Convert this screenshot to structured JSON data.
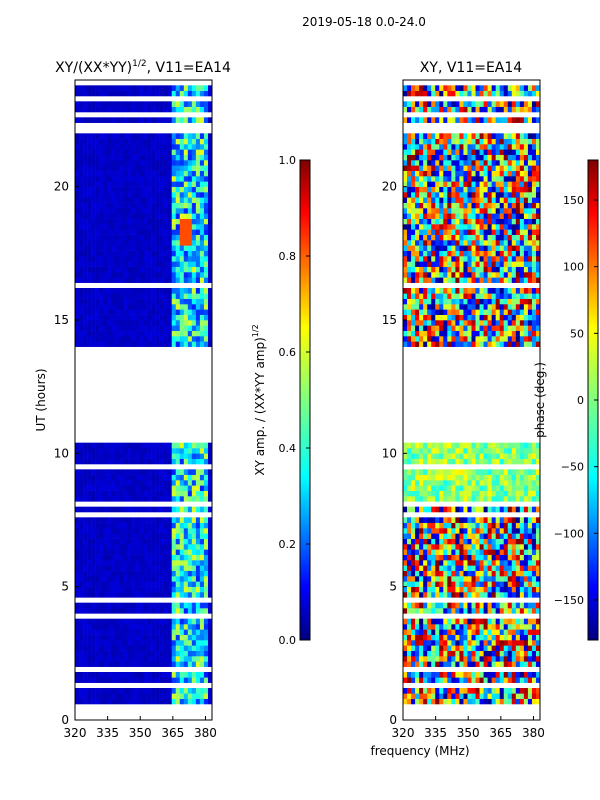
{
  "figure": {
    "suptitle": "2019-05-18 0.0-24.0",
    "shared_xlabel": "frequency (MHz)"
  },
  "colors": {
    "colormap": [
      "#00007f",
      "#0000ff",
      "#007fff",
      "#00ffff",
      "#7fff7f",
      "#ffff00",
      "#ff7f00",
      "#ff0000",
      "#7f0000"
    ],
    "axes": "#000000",
    "background": "#ffffff"
  },
  "chart_data": [
    {
      "type": "heatmap",
      "title": "XY/(XX*YY)",
      "title_superscript": "1/2",
      "title_suffix": ", V11=EA14",
      "xlabel": "",
      "ylabel": "UT (hours)",
      "xlim": [
        320,
        383
      ],
      "ylim": [
        0,
        24
      ],
      "xticks": [
        "320",
        "335",
        "350",
        "365",
        "380"
      ],
      "xtick_values": [
        320,
        335,
        350,
        365,
        380
      ],
      "yticks": [
        "0",
        "5",
        "10",
        "15",
        "20"
      ],
      "ytick_values": [
        0,
        5,
        10,
        15,
        20
      ],
      "colorbar": {
        "label": "XY amp. / (XX*YY amp)",
        "label_superscript": "1/2",
        "range": [
          0.0,
          1.0
        ],
        "ticks": [
          "0.0",
          "0.2",
          "0.4",
          "0.6",
          "0.8",
          "1.0"
        ],
        "tick_values": [
          0.0,
          0.2,
          0.4,
          0.6,
          0.8,
          1.0
        ]
      },
      "data_gap_hours": [
        10.5,
        14.1
      ],
      "active_band_mhz": [
        364,
        381
      ],
      "bright_feature": {
        "freq_mhz": 371,
        "ut_hours": [
          17.8,
          18.8
        ],
        "value": 0.8
      },
      "baseline_value": 0.05
    },
    {
      "type": "heatmap",
      "title": "XY, V11=EA14",
      "xlabel": "frequency (MHz)",
      "ylabel": "",
      "xlim": [
        320,
        383
      ],
      "ylim": [
        0,
        24
      ],
      "xticks": [
        "320",
        "335",
        "350",
        "365",
        "380"
      ],
      "xtick_values": [
        320,
        335,
        350,
        365,
        380
      ],
      "yticks": [
        "0",
        "5",
        "10",
        "15",
        "20"
      ],
      "ytick_values": [
        0,
        5,
        10,
        15,
        20
      ],
      "colorbar": {
        "label": "phase (deg.)",
        "range": [
          -180,
          180
        ],
        "ticks": [
          "−150",
          "−100",
          "−50",
          "0",
          "50",
          "100",
          "150"
        ],
        "tick_values": [
          -150,
          -100,
          -50,
          0,
          50,
          100,
          150
        ]
      },
      "data_gap_hours": [
        10.5,
        14.1
      ]
    }
  ]
}
